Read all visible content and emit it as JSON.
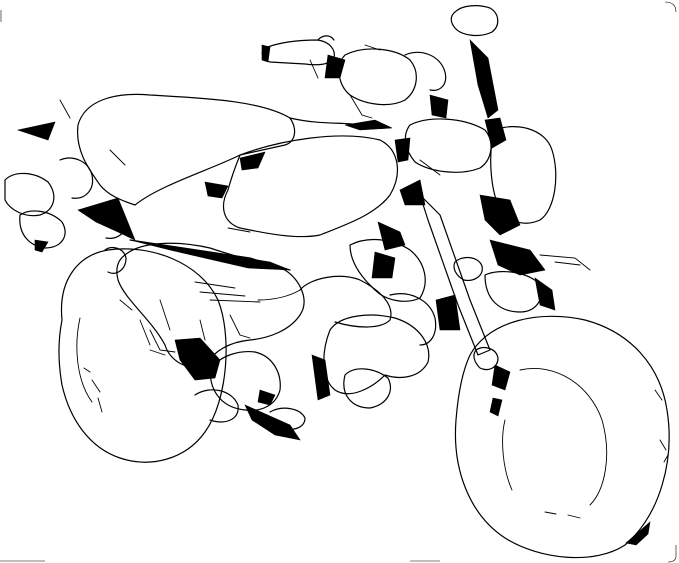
{
  "image": {
    "subject": "",
    "colors": {
      "background": "#ffffff",
      "ink": "#000000"
    }
  }
}
